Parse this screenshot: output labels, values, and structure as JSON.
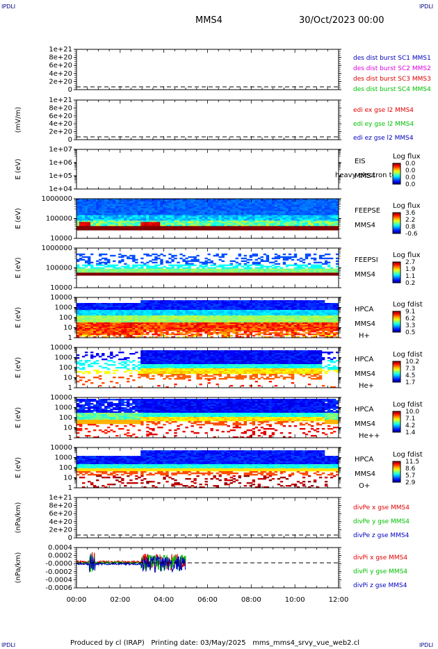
{
  "corner_labels": {
    "tl": "IPDLI",
    "tr": "IPDLI",
    "bl": "IPDLI",
    "br": "IPDLI"
  },
  "header": {
    "spacecraft": "MMS4",
    "datetime": "30/Oct/2023 00:00"
  },
  "footer": {
    "text": "Produced by cl (IRAP)   Printing date: 03/May/2025   mms_mms4_srvy_vue_web2.cl"
  },
  "colors": {
    "red": "#e00000",
    "green": "#00c000",
    "blue": "#0000c0",
    "magenta": "#e000e0",
    "gray": "#555555"
  },
  "chart_data": [
    {
      "type": "line",
      "ylabel": "",
      "yticks": [
        "1e+21",
        "8e+20",
        "6e+20",
        "4e+20",
        "2e+20",
        "0"
      ],
      "legend": [
        {
          "text": "des dist burst SC1 MMS1",
          "color": "blue"
        },
        {
          "text": "des dist burst SC2 MMS2",
          "color": "magenta"
        },
        {
          "text": "des dist burst SC3 MMS3",
          "color": "red"
        },
        {
          "text": "des dist burst SC4 MMS4",
          "color": "green"
        }
      ],
      "series": []
    },
    {
      "type": "line",
      "ylabel": "(mV/m)",
      "yticks": [
        "1e+21",
        "8e+20",
        "6e+20",
        "4e+20",
        "2e+20",
        "0"
      ],
      "legend": [
        {
          "text": "edi ex gse l2 MMS4",
          "color": "red"
        },
        {
          "text": "edi ey gse l2 MMS4",
          "color": "green"
        },
        {
          "text": "edi ez gse l2 MMS4",
          "color": "blue"
        }
      ],
      "series": []
    },
    {
      "type": "heatmap",
      "ylabel": "E (eV)",
      "yticks": [
        "1e+07",
        "1e+06",
        "1e+05",
        "1e+04"
      ],
      "labels": [
        "EIS",
        "MMS4"
      ],
      "overlay": "heavy electron to",
      "cbar_title": "Log flux",
      "cbar_ticks": [
        "0.0",
        "0.0",
        "0.0",
        "0.0"
      ],
      "empty": true
    },
    {
      "type": "heatmap",
      "ylabel": "E (eV)",
      "yticks": [
        "1000000",
        "100000",
        "10000"
      ],
      "labels": [
        "FEEPSE",
        "MMS4"
      ],
      "cbar_title": "Log flux",
      "cbar_ticks": [
        "3.6",
        "2.2",
        "0.8",
        "-0.6"
      ]
    },
    {
      "type": "heatmap",
      "ylabel": "E (eV)",
      "yticks": [
        "1000000",
        "100000",
        "10000"
      ],
      "labels": [
        "FEEPSI",
        "MMS4"
      ],
      "cbar_title": "Log flux",
      "cbar_ticks": [
        "2.7",
        "1.9",
        "1.1",
        "0.2"
      ]
    },
    {
      "type": "heatmap",
      "ylabel": "E (eV)",
      "yticks": [
        "10000",
        "1000",
        "100",
        "10",
        "1"
      ],
      "labels": [
        "HPCA",
        "MMS4",
        "H+"
      ],
      "cbar_title": "Log fdist",
      "cbar_ticks": [
        "9.1",
        "6.2",
        "3.3",
        "0.5"
      ]
    },
    {
      "type": "heatmap",
      "ylabel": "E (eV)",
      "yticks": [
        "10000",
        "1000",
        "100",
        "10",
        "1"
      ],
      "labels": [
        "HPCA",
        "MMS4",
        "He+"
      ],
      "cbar_title": "Log fdist",
      "cbar_ticks": [
        "10.2",
        "7.3",
        "4.5",
        "1.7"
      ]
    },
    {
      "type": "heatmap",
      "ylabel": "E (eV)",
      "yticks": [
        "10000",
        "1000",
        "100",
        "10",
        "1"
      ],
      "labels": [
        "HPCA",
        "MMS4",
        "He++"
      ],
      "cbar_title": "Log fdist",
      "cbar_ticks": [
        "10.0",
        "7.1",
        "4.2",
        "1.4"
      ]
    },
    {
      "type": "heatmap",
      "ylabel": "E (eV)",
      "yticks": [
        "10000",
        "1000",
        "100",
        "10",
        "1"
      ],
      "labels": [
        "HPCA",
        "MMS4",
        "O+"
      ],
      "cbar_title": "Log fdist",
      "cbar_ticks": [
        "11.5",
        "8.6",
        "5.7",
        "2.9"
      ]
    },
    {
      "type": "line",
      "ylabel": "(nPa/km)",
      "yticks": [
        "1e+21",
        "8e+20",
        "6e+20",
        "4e+20",
        "2e+20",
        "0"
      ],
      "legend": [
        {
          "text": "divPe x gse MMS4",
          "color": "red"
        },
        {
          "text": "divPe y gse MMS4",
          "color": "green"
        },
        {
          "text": "divPe z gse MMS4",
          "color": "blue"
        }
      ],
      "series": []
    },
    {
      "type": "line",
      "ylabel": "(nPa/km)",
      "yticks": [
        "0.0004",
        "0.0002",
        "-0.0000",
        "-0.0002",
        "-0.0004",
        "-0.0006"
      ],
      "legend": [
        {
          "text": "divPi x gse MMS4",
          "color": "red"
        },
        {
          "text": "divPi y gse MMS4",
          "color": "green"
        },
        {
          "text": "divPi z gse MMS4",
          "color": "blue"
        }
      ],
      "series": [
        {
          "name": "divPi x gse MMS4",
          "color": "red"
        },
        {
          "name": "divPi y gse MMS4",
          "color": "green"
        },
        {
          "name": "divPi z gse MMS4",
          "color": "blue"
        }
      ]
    }
  ],
  "xaxis": {
    "ticks": [
      "00:00",
      "02:00",
      "04:00",
      "06:00",
      "08:00",
      "10:00",
      "12:00"
    ],
    "range_hours": [
      0,
      12
    ]
  }
}
